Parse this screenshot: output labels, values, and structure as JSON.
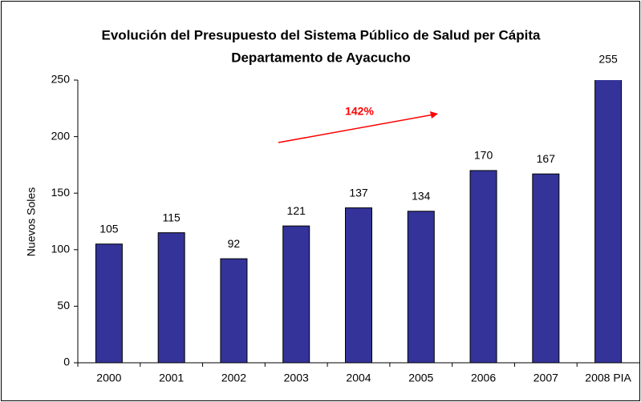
{
  "chart_data": {
    "type": "bar",
    "title": "Evolución del Presupuesto del Sistema Público de Salud per Cápita",
    "subtitle": "Departamento de Ayacucho",
    "y_label": "Nuevos Soles",
    "annotation": "142%",
    "categories": [
      "2000",
      "2001",
      "2002",
      "2003",
      "2004",
      "2005",
      "2006",
      "2007",
      "2008 PIA"
    ],
    "values": [
      105,
      115,
      92,
      121,
      137,
      134,
      170,
      167,
      255
    ],
    "color": "#333399",
    "ylim": [
      0,
      250
    ],
    "yticks": [
      0,
      50,
      100,
      150,
      200,
      250
    ],
    "grid": false
  }
}
